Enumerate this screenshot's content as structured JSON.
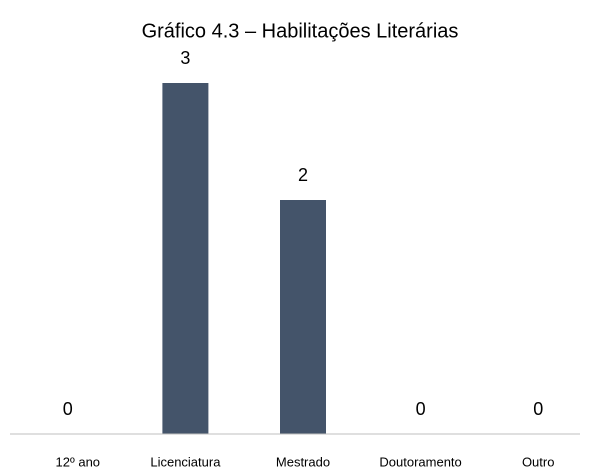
{
  "chart_data": {
    "type": "bar",
    "title": "Gráfico 4.3 – Habilitações Literárias",
    "categories": [
      "12º ano",
      "Licenciatura",
      "Mestrado",
      "Doutoramento",
      "Outro"
    ],
    "values": [
      0,
      3,
      2,
      0,
      0
    ],
    "color": "#44546a",
    "ylim": [
      0,
      3
    ],
    "grid": false
  }
}
